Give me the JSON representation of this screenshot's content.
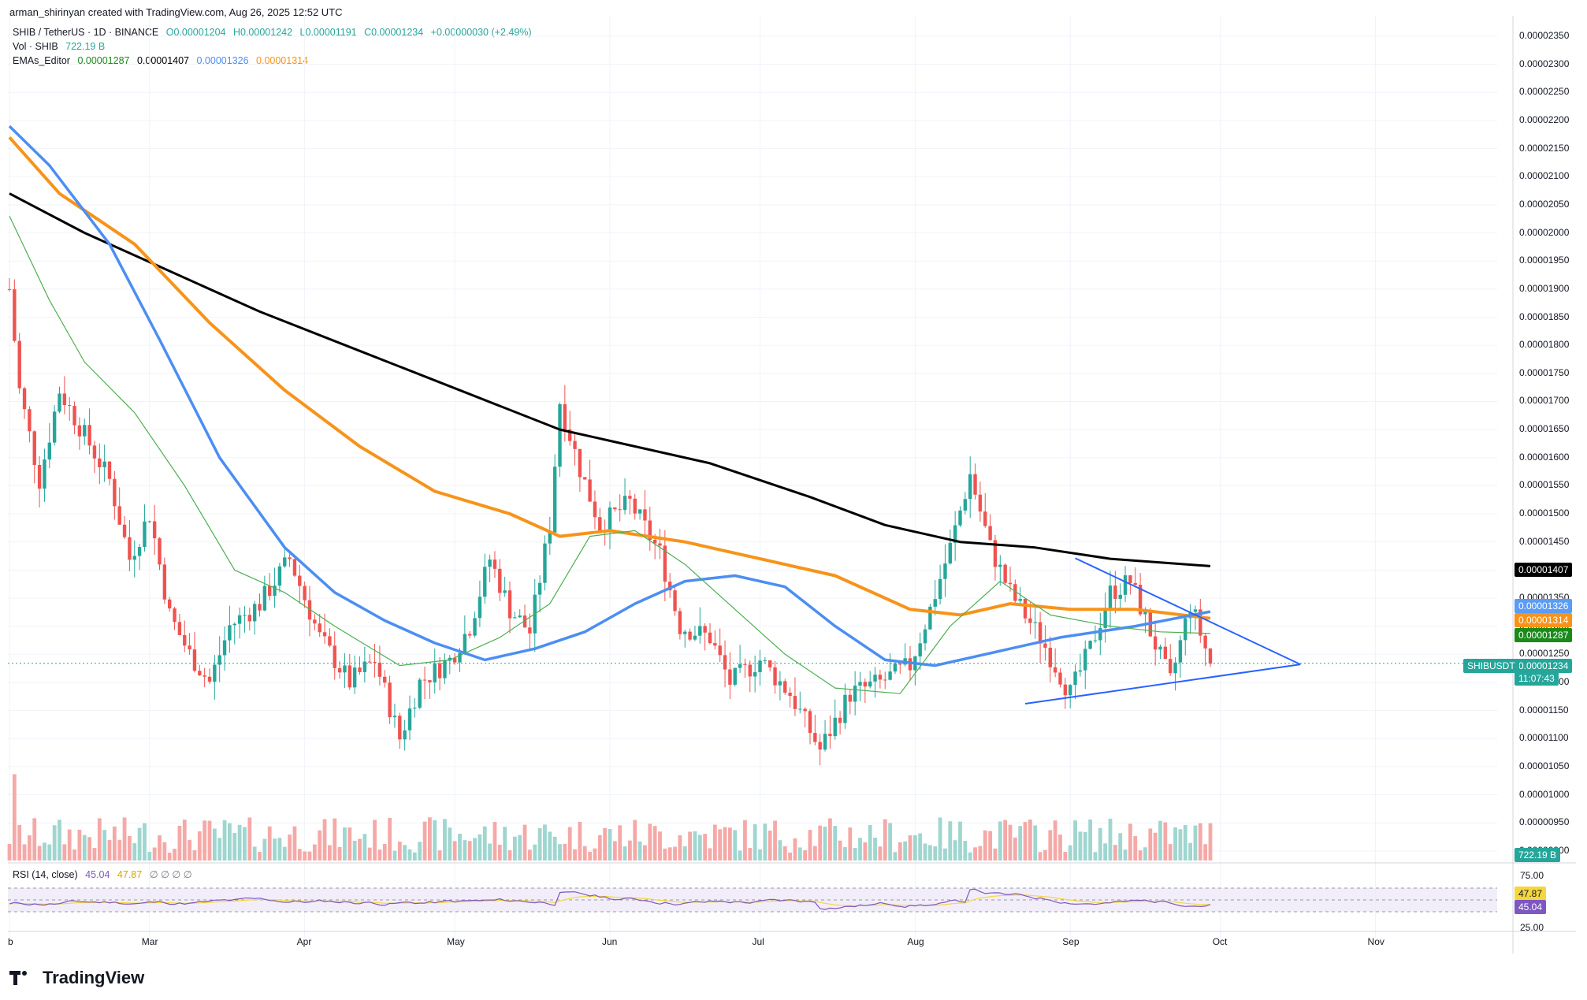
{
  "header": {
    "credit": "arman_shirinyan created with TradingView.com, Aug 26, 2025 12:52 UTC"
  },
  "legend": {
    "symbol": "SHIB / TetherUS · 1D · BINANCE",
    "open": "O0.00001204",
    "high": "H0.00001242",
    "low": "L0.00001191",
    "close": "C0.00001234",
    "change": "+0.00000030 (+2.49%)",
    "vol_label": "Vol · SHIB",
    "vol_value": "722.19 B",
    "ema_label": "EMAs_Editor",
    "ema_values": [
      "0.00001287",
      "0.00001407",
      "0.00001326",
      "0.00001314"
    ],
    "rsi_label": "RSI (14, close)",
    "rsi_value": "45.04",
    "rsi_ma": "47.87",
    "rsi_zeros": "∅ ∅ ∅ ∅"
  },
  "price_axis": {
    "ticks": [
      "0.00002350",
      "0.00002300",
      "0.00002250",
      "0.00002200",
      "0.00002150",
      "0.00002100",
      "0.00002050",
      "0.00002000",
      "0.00001950",
      "0.00001900",
      "0.00001850",
      "0.00001800",
      "0.00001750",
      "0.00001700",
      "0.00001650",
      "0.00001600",
      "0.00001550",
      "0.00001500",
      "0.00001450",
      "0.00001400",
      "0.00001350",
      "0.00001300",
      "0.00001250",
      "0.00001200",
      "0.00001150",
      "0.00001100",
      "0.00001050",
      "0.00001000",
      "0.00000950",
      "0.00000900"
    ],
    "badges": [
      {
        "text": "0.00001407",
        "color": "#000000"
      },
      {
        "text": "0.00001326",
        "color": "#5b9cf6"
      },
      {
        "text": "0.00001314",
        "color": "#f7931a"
      },
      {
        "text": "0.00001287",
        "color": "#1b8a1b"
      },
      {
        "text": "0.00001234",
        "color": "#26a69a"
      },
      {
        "text": "11:07:43",
        "color": "#26a69a"
      }
    ],
    "symbol_tag": "SHIBUSDT",
    "volume_badge": "722.19 B",
    "rsi_ticks": [
      "75.00",
      "25.00"
    ],
    "rsi_badges": [
      {
        "text": "47.87",
        "color": "#f5d63d",
        "fg": "#131722"
      },
      {
        "text": "45.04",
        "color": "#7e57c2",
        "fg": "#ffffff"
      }
    ]
  },
  "time_axis": {
    "labels": [
      "b",
      "Mar",
      "Apr",
      "May",
      "Jun",
      "Jul",
      "Aug",
      "Sep",
      "Oct",
      "Nov"
    ]
  },
  "branding": {
    "logo_text": "TradingView"
  },
  "colors": {
    "up": "#26a69a",
    "down": "#ef5350",
    "ema_fast": "#4caf50",
    "ema_200": "#000000",
    "ema_50": "#4c8ef2",
    "ema_100": "#f7931a",
    "triangle": "#2962ff",
    "rsi": "#7e57c2",
    "rsi_ma": "#f5d63d"
  }
}
